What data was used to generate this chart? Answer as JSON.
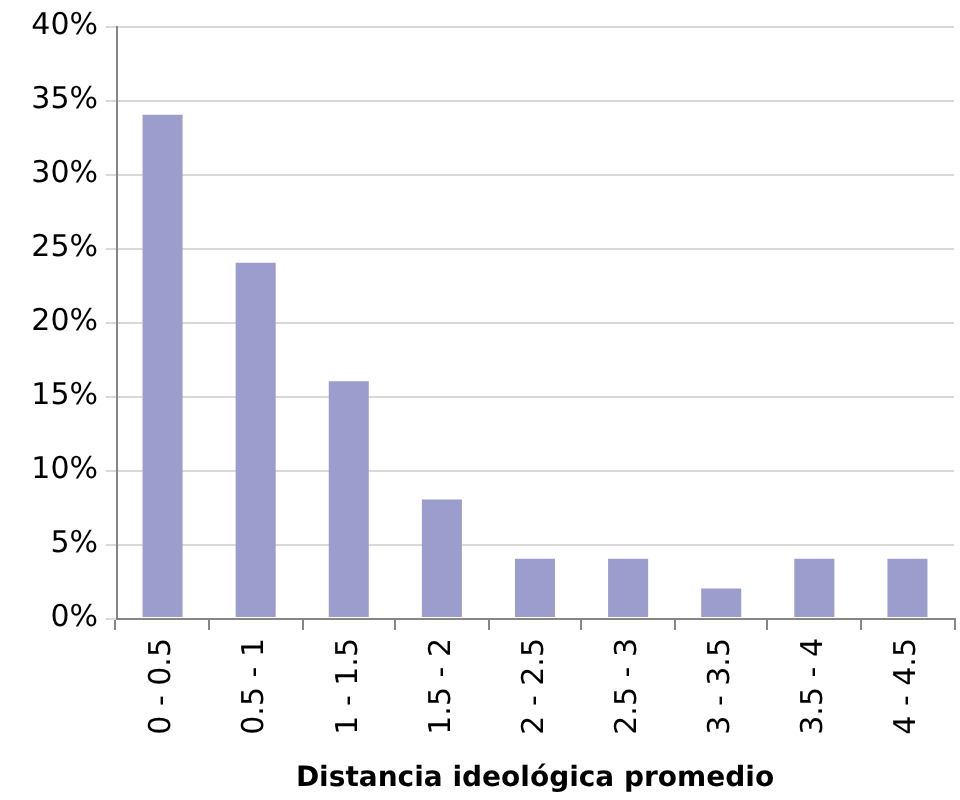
{
  "chart_data": {
    "type": "bar",
    "xlabel": "Distancia ideológica promedio",
    "categories": [
      "0 - 0.5",
      "0.5 - 1",
      "1 - 1.5",
      "1.5 - 2",
      "2 - 2.5",
      "2.5 - 3",
      "3 - 3.5",
      "3.5 - 4",
      "4 - 4.5"
    ],
    "values": [
      34,
      24,
      16,
      8,
      4,
      4,
      2,
      4,
      4
    ],
    "color": "#9b9dcc",
    "ylim": [
      0,
      40
    ],
    "yticks": [
      {
        "value": 0,
        "label": "0%"
      },
      {
        "value": 5,
        "label": "5%"
      },
      {
        "value": 10,
        "label": "10%"
      },
      {
        "value": 15,
        "label": "15%"
      },
      {
        "value": 20,
        "label": "20%"
      },
      {
        "value": 25,
        "label": "25%"
      },
      {
        "value": 30,
        "label": "30%"
      },
      {
        "value": 35,
        "label": "35%"
      },
      {
        "value": 40,
        "label": "40%"
      }
    ],
    "grid": "y"
  }
}
